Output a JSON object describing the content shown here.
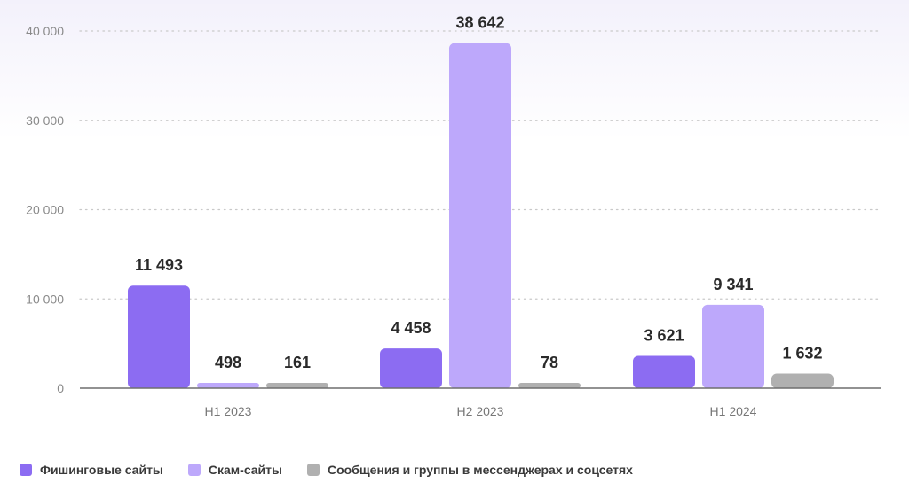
{
  "chart_data": {
    "type": "bar",
    "title": "",
    "xlabel": "",
    "ylabel": "",
    "categories": [
      "H1 2023",
      "H2 2023",
      "H1 2024"
    ],
    "series": [
      {
        "name": "Фишинговые сайты",
        "values": [
          11493,
          4458,
          3621
        ],
        "labels": [
          "11 493",
          "4 458",
          "3 621"
        ],
        "color": "#8c6cf2"
      },
      {
        "name": "Скам-сайты",
        "values": [
          498,
          38642,
          9341
        ],
        "labels": [
          "498",
          "38 642",
          "9 341"
        ],
        "color": "#bda8fb"
      },
      {
        "name": "Сообщения и группы в мессенджерах и соцсетях",
        "values": [
          161,
          78,
          1632
        ],
        "labels": [
          "161",
          "78",
          "1 632"
        ],
        "color": "#b0b0b0"
      }
    ],
    "ylim": [
      0,
      40000
    ],
    "yticks": [
      0,
      10000,
      20000,
      30000,
      40000
    ],
    "ytick_labels": [
      "0",
      "10 000",
      "20 000",
      "30 000",
      "40 000"
    ],
    "grid": true,
    "legend": "bottom-left"
  }
}
